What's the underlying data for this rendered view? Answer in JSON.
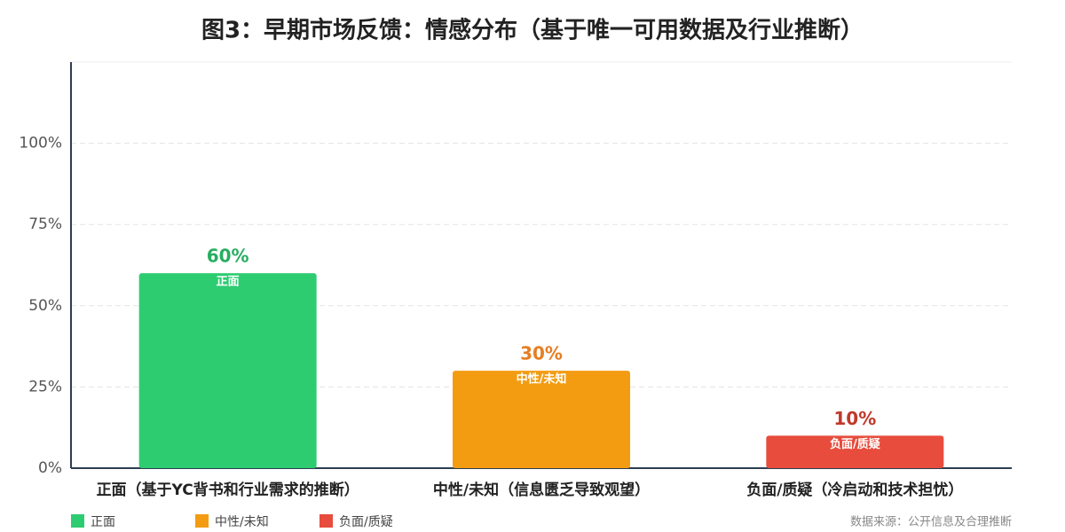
{
  "chart_data": {
    "type": "bar",
    "title": "图3：早期市场反馈：情感分布（基于唯一可用数据及行业推断）",
    "categories": [
      "正面（基于YC背书和行业需求的推断）",
      "中性/未知（信息匮乏导致观望）",
      "负面/质疑（冷启动和技术担忧）"
    ],
    "values": [
      60,
      30,
      10
    ],
    "value_labels": [
      "60%",
      "30%",
      "10%"
    ],
    "legend": [
      "正面",
      "中性/未知",
      "负面/质疑"
    ],
    "colors": [
      "#2ecc71",
      "#f39c12",
      "#e74c3c"
    ],
    "label_colors": [
      "#27ae60",
      "#e67e22",
      "#c0392b"
    ],
    "ylim": [
      0,
      125
    ],
    "yticks": [
      {
        "value": 0,
        "label": "0%"
      },
      {
        "value": 25,
        "label": "25%"
      },
      {
        "value": 50,
        "label": "50%"
      },
      {
        "value": 75,
        "label": "75%"
      },
      {
        "value": 100,
        "label": "100%"
      }
    ],
    "grid": true,
    "source": "数据来源：公开信息及合理推断"
  }
}
